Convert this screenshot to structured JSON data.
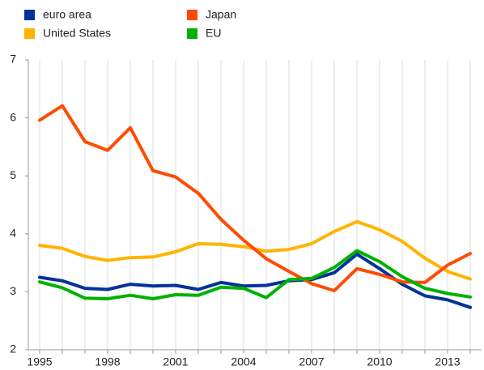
{
  "chart_data": {
    "type": "line",
    "x": [
      1995,
      1996,
      1997,
      1998,
      1999,
      2000,
      2001,
      2002,
      2003,
      2004,
      2005,
      2006,
      2007,
      2008,
      2009,
      2010,
      2011,
      2012,
      2013,
      2014
    ],
    "series": [
      {
        "name": "euro area",
        "color": "#003399",
        "values": [
          3.25,
          3.19,
          3.06,
          3.04,
          3.13,
          3.1,
          3.11,
          3.04,
          3.16,
          3.1,
          3.11,
          3.19,
          3.21,
          3.33,
          3.65,
          3.4,
          3.13,
          2.93,
          2.86,
          2.73
        ]
      },
      {
        "name": "United States",
        "color": "#ffb400",
        "values": [
          3.8,
          3.75,
          3.61,
          3.54,
          3.59,
          3.6,
          3.69,
          3.83,
          3.82,
          3.78,
          3.7,
          3.73,
          3.83,
          4.04,
          4.21,
          4.07,
          3.87,
          3.58,
          3.35,
          3.22
        ]
      },
      {
        "name": "Japan",
        "color": "#ff4b00",
        "values": [
          5.96,
          6.21,
          5.59,
          5.44,
          5.83,
          5.09,
          4.98,
          4.7,
          4.25,
          3.89,
          3.57,
          3.35,
          3.14,
          3.02,
          3.4,
          3.3,
          3.17,
          3.16,
          3.46,
          3.66
        ]
      },
      {
        "name": "EU",
        "color": "#00b200",
        "values": [
          3.17,
          3.07,
          2.89,
          2.88,
          2.94,
          2.88,
          2.95,
          2.94,
          3.08,
          3.06,
          2.9,
          3.21,
          3.23,
          3.42,
          3.71,
          3.52,
          3.26,
          3.06,
          2.97,
          2.91
        ]
      }
    ],
    "xlim": [
      1994.5,
      2014.5
    ],
    "xticks": [
      1995,
      1998,
      2001,
      2004,
      2007,
      2010,
      2013
    ],
    "ylim": [
      2,
      7
    ],
    "yticks": [
      2,
      3,
      4,
      5,
      6,
      7
    ],
    "grid": "x",
    "legend": "top-left"
  }
}
